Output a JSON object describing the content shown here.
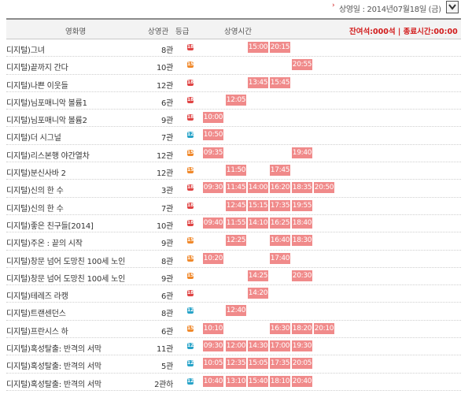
{
  "top": {
    "arrow": "›",
    "date_label": "상영일 : 2014년07월18일 (금)",
    "dropdown_icon": "chevron-down-icon"
  },
  "header": {
    "title_col": "영화명",
    "screen_col": "상영관",
    "grade_col": "등급",
    "times_col": "상영시간",
    "info": "잔여석:000석 | 종료시간:00:00"
  },
  "colors": {
    "grade_red": "#e04444",
    "grade_orange": "#f0882a",
    "grade_blue": "#27a3c8",
    "slot_bg": "#f08a8a",
    "accent": "#d21b1b"
  },
  "time_columns": 6,
  "rows": [
    {
      "title": "디지털)그녀",
      "screen": "8관",
      "grade": "red",
      "grade_text": "18",
      "slots": [
        "",
        "",
        "15:00",
        "20:15",
        "",
        ""
      ]
    },
    {
      "title": "디지털)끝까지 간다",
      "screen": "10관",
      "grade": "orange",
      "grade_text": "15",
      "slots": [
        "",
        "",
        "",
        "",
        "20:55",
        ""
      ]
    },
    {
      "title": "디지털)나쁜 이웃들",
      "screen": "12관",
      "grade": "red",
      "grade_text": "18",
      "slots": [
        "",
        "",
        "13:45",
        "15:45",
        "",
        ""
      ]
    },
    {
      "title": "디지털)님포매니악 볼륨1",
      "screen": "6관",
      "grade": "red",
      "grade_text": "18",
      "slots": [
        "",
        "12:05",
        "",
        "",
        "",
        ""
      ]
    },
    {
      "title": "디지털)님포매니악 볼륨2",
      "screen": "9관",
      "grade": "red",
      "grade_text": "18",
      "slots": [
        "10:00",
        "",
        "",
        "",
        "",
        ""
      ]
    },
    {
      "title": "디지털)더 시그널",
      "screen": "7관",
      "grade": "blue",
      "grade_text": "12",
      "slots": [
        "10:50",
        "",
        "",
        "",
        "",
        ""
      ]
    },
    {
      "title": "디지털)리스본행 야간열차",
      "screen": "12관",
      "grade": "orange",
      "grade_text": "15",
      "slots": [
        "09:35",
        "",
        "",
        "",
        "19:40",
        ""
      ]
    },
    {
      "title": "디지털)분신사바 2",
      "screen": "12관",
      "grade": "orange",
      "grade_text": "15",
      "slots": [
        "",
        "11:50",
        "",
        "17:45",
        "",
        ""
      ]
    },
    {
      "title": "디지털)신의 한 수",
      "screen": "3관",
      "grade": "red",
      "grade_text": "18",
      "slots": [
        "09:30",
        "11:45",
        "14:00",
        "16:20",
        "18:35",
        "20:50"
      ]
    },
    {
      "title": "디지털)신의 한 수",
      "screen": "7관",
      "grade": "red",
      "grade_text": "18",
      "slots": [
        "",
        "12:45",
        "15:15",
        "17:35",
        "19:55",
        ""
      ]
    },
    {
      "title": "디지털)좋은 친구들[2014]",
      "screen": "10관",
      "grade": "red",
      "grade_text": "18",
      "slots": [
        "09:40",
        "11:55",
        "14:10",
        "16:25",
        "18:40",
        ""
      ]
    },
    {
      "title": "디지털)주온 : 끝의 시작",
      "screen": "9관",
      "grade": "orange",
      "grade_text": "15",
      "slots": [
        "",
        "12:25",
        "",
        "16:40",
        "18:30",
        ""
      ]
    },
    {
      "title": "디지털)창문 넘어 도망친 100세 노인",
      "screen": "8관",
      "grade": "orange",
      "grade_text": "15",
      "slots": [
        "10:20",
        "",
        "",
        "17:40",
        "",
        ""
      ]
    },
    {
      "title": "디지털)창문 넘어 도망친 100세 노인",
      "screen": "9관",
      "grade": "orange",
      "grade_text": "15",
      "slots": [
        "",
        "",
        "14:25",
        "",
        "20:30",
        ""
      ]
    },
    {
      "title": "디지털)테레즈 라캥",
      "screen": "6관",
      "grade": "red",
      "grade_text": "18",
      "slots": [
        "",
        "",
        "14:20",
        "",
        "",
        ""
      ]
    },
    {
      "title": "디지털)트랜센던스",
      "screen": "8관",
      "grade": "blue",
      "grade_text": "12",
      "slots": [
        "",
        "12:40",
        "",
        "",
        "",
        ""
      ]
    },
    {
      "title": "디지털)프란시스 하",
      "screen": "6관",
      "grade": "orange",
      "grade_text": "15",
      "slots": [
        "10:10",
        "",
        "",
        "16:30",
        "18:20",
        "20:10"
      ]
    },
    {
      "title": "디지털)혹성탈출: 반격의 서막",
      "screen": "11관",
      "grade": "blue",
      "grade_text": "12",
      "slots": [
        "09:30",
        "12:00",
        "14:30",
        "17:00",
        "19:30",
        ""
      ]
    },
    {
      "title": "디지털)혹성탈출: 반격의 서막",
      "screen": "5관",
      "grade": "blue",
      "grade_text": "12",
      "slots": [
        "10:05",
        "12:35",
        "15:05",
        "17:35",
        "20:05",
        ""
      ]
    },
    {
      "title": "디지털)혹성탈출: 반격의 서막",
      "screen": "2관하",
      "grade": "blue",
      "grade_text": "12",
      "slots": [
        "10:40",
        "13:10",
        "15:40",
        "18:10",
        "20:40",
        ""
      ]
    }
  ]
}
